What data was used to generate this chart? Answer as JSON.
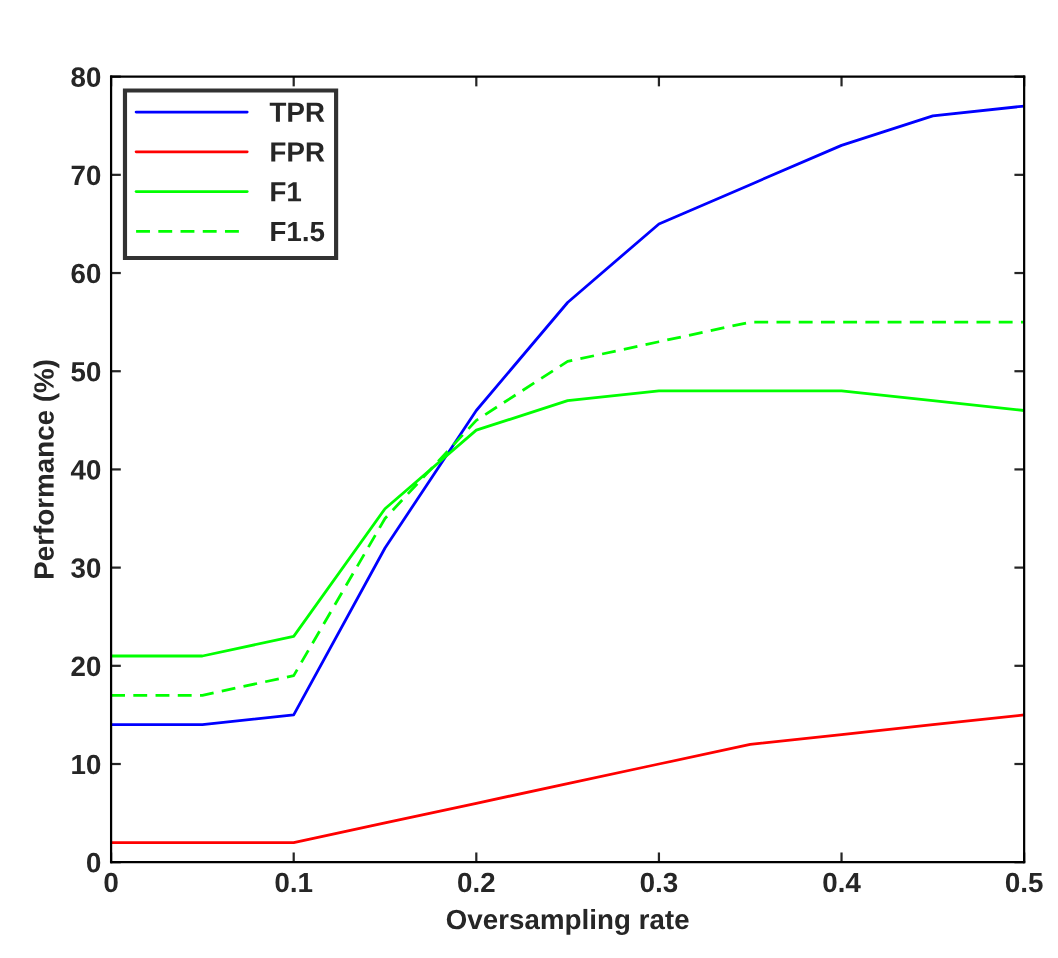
{
  "chart_data": {
    "type": "line",
    "xlabel": "Oversampling rate",
    "ylabel": "Performance (%)",
    "x": [
      0,
      0.05,
      0.1,
      0.15,
      0.2,
      0.25,
      0.3,
      0.35,
      0.4,
      0.45,
      0.5
    ],
    "series": [
      {
        "name": "TPR",
        "color": "#0000ff",
        "values": [
          14,
          14,
          15,
          32,
          46,
          57,
          65,
          69,
          73,
          76,
          77
        ]
      },
      {
        "name": "FPR",
        "color": "#ff0000",
        "values": [
          2,
          2,
          2,
          4,
          6,
          8,
          10,
          12,
          13,
          14,
          15
        ]
      },
      {
        "name": "F1",
        "color": "#00ff00",
        "values": [
          21,
          21,
          23,
          36,
          44,
          47,
          48,
          48,
          48,
          47,
          46
        ]
      },
      {
        "name": "F1.5",
        "color": "#00ff00",
        "line_style": "dashed",
        "values": [
          17,
          17,
          19,
          35,
          45,
          51,
          53,
          55,
          55,
          55,
          55
        ]
      }
    ],
    "xlim": [
      0,
      0.5
    ],
    "xticks": [
      0,
      0.1,
      0.2,
      0.3,
      0.4,
      0.5
    ],
    "ylim": [
      0,
      80
    ],
    "yticks": [
      0,
      10,
      20,
      30,
      40,
      50,
      60,
      70,
      80
    ],
    "grid": false,
    "legend": "top left"
  }
}
